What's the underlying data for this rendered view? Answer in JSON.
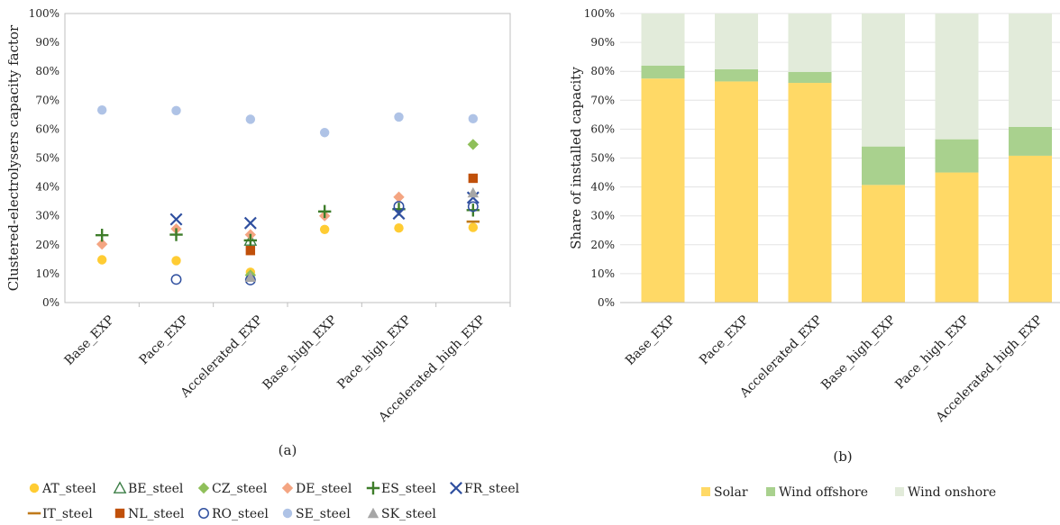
{
  "chart_data": [
    {
      "type": "scatter",
      "panel_label": "(a)",
      "ylabel": "Clustered-electrolysers capacity factor",
      "ylim": [
        0,
        100
      ],
      "yticks": [
        "0%",
        "10%",
        "20%",
        "30%",
        "40%",
        "50%",
        "60%",
        "70%",
        "80%",
        "90%",
        "100%"
      ],
      "categories": [
        "Base_EXP",
        "Pace_EXP",
        "Accelerated_EXP",
        "Base_high_EXP",
        "Pace_high_EXP",
        "Accelerated_high_EXP"
      ],
      "legend_position": "bottom",
      "series": [
        {
          "name": "AT_steel",
          "marker": "circle",
          "color": "#FFCC33",
          "values": [
            14.8,
            14.5,
            10.5,
            25.3,
            25.8,
            26.0
          ]
        },
        {
          "name": "BE_steel",
          "marker": "triangle-open",
          "color": "#3A7D44",
          "values": [
            null,
            null,
            21.5,
            null,
            null,
            null
          ]
        },
        {
          "name": "CZ_steel",
          "marker": "diamond",
          "color": "#8FBF5A",
          "values": [
            null,
            null,
            9.5,
            null,
            null,
            54.7
          ]
        },
        {
          "name": "DE_steel",
          "marker": "diamond",
          "color": "#F4A582",
          "values": [
            20.2,
            25.5,
            23.5,
            30.0,
            36.5,
            null
          ]
        },
        {
          "name": "ES_steel",
          "marker": "plus",
          "color": "#3E7D2A",
          "values": [
            23.3,
            23.5,
            21.5,
            31.5,
            32.3,
            32.0
          ]
        },
        {
          "name": "FR_steel",
          "marker": "x",
          "color": "#2F4F9F",
          "values": [
            null,
            28.8,
            27.5,
            null,
            30.8,
            36.3
          ]
        },
        {
          "name": "IT_steel",
          "marker": "dash",
          "color": "#C07A1A",
          "values": [
            null,
            null,
            null,
            null,
            null,
            28.0
          ]
        },
        {
          "name": "NL_steel",
          "marker": "square",
          "color": "#C0500A",
          "values": [
            null,
            null,
            18.0,
            null,
            null,
            43.0
          ]
        },
        {
          "name": "RO_steel",
          "marker": "circle-open",
          "color": "#2F4F9F",
          "values": [
            null,
            8.0,
            7.8,
            null,
            33.3,
            33.2
          ]
        },
        {
          "name": "SE_steel",
          "marker": "circle",
          "color": "#AFC3E6",
          "values": [
            66.6,
            66.4,
            63.4,
            58.8,
            64.2,
            63.6
          ]
        },
        {
          "name": "SK_steel",
          "marker": "triangle",
          "color": "#A6A6A6",
          "values": [
            null,
            null,
            8.8,
            null,
            null,
            38.0
          ]
        }
      ]
    },
    {
      "type": "bar",
      "stacked": true,
      "panel_label": "(b)",
      "ylabel": "Share of installed capacity",
      "ylim": [
        0,
        100
      ],
      "yticks": [
        "0%",
        "10%",
        "20%",
        "30%",
        "40%",
        "50%",
        "60%",
        "70%",
        "80%",
        "90%",
        "100%"
      ],
      "categories": [
        "Base_EXP",
        "Pace_EXP",
        "Accelerated_EXP",
        "Base_high_EXP",
        "Pace_high_EXP",
        "Accelerated_high_EXP"
      ],
      "legend_position": "bottom",
      "series": [
        {
          "name": "Solar",
          "color": "#FFD966",
          "values": [
            77.5,
            76.5,
            76.0,
            40.7,
            45.0,
            50.8
          ]
        },
        {
          "name": "Wind offshore",
          "color": "#A9D18E",
          "values": [
            4.5,
            4.2,
            3.8,
            13.3,
            11.5,
            10.0
          ]
        },
        {
          "name": "Wind onshore",
          "color": "#E2EBDA",
          "values": [
            18.0,
            19.3,
            20.2,
            46.0,
            43.5,
            39.2
          ]
        }
      ]
    }
  ]
}
